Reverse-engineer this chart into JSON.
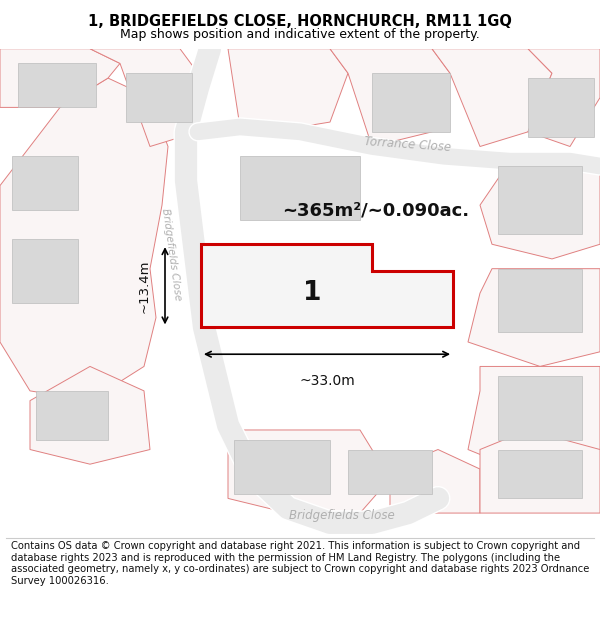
{
  "title": "1, BRIDGEFIELDS CLOSE, HORNCHURCH, RM11 1GQ",
  "subtitle": "Map shows position and indicative extent of the property.",
  "footer": "Contains OS data © Crown copyright and database right 2021. This information is subject to Crown copyright and database rights 2023 and is reproduced with the permission of HM Land Registry. The polygons (including the associated geometry, namely x, y co-ordinates) are subject to Crown copyright and database rights 2023 Ordnance Survey 100026316.",
  "area_label": "~365m²/~0.090ac.",
  "plot_number": "1",
  "width_label": "~33.0m",
  "height_label": "~13.4m",
  "title_fontsize": 10.5,
  "subtitle_fontsize": 9,
  "footer_fontsize": 7.2,
  "road_label_color": "#b0b0b0",
  "building_fill": "#d8d8d8",
  "building_edge": "#bbbbbb",
  "plot_fill": "#f0f0f0",
  "plot_edge": "#e08080",
  "highlight_fill": "#f5f5f5",
  "highlight_edge": "#cc0000",
  "map_bg": "#f5f5f5"
}
